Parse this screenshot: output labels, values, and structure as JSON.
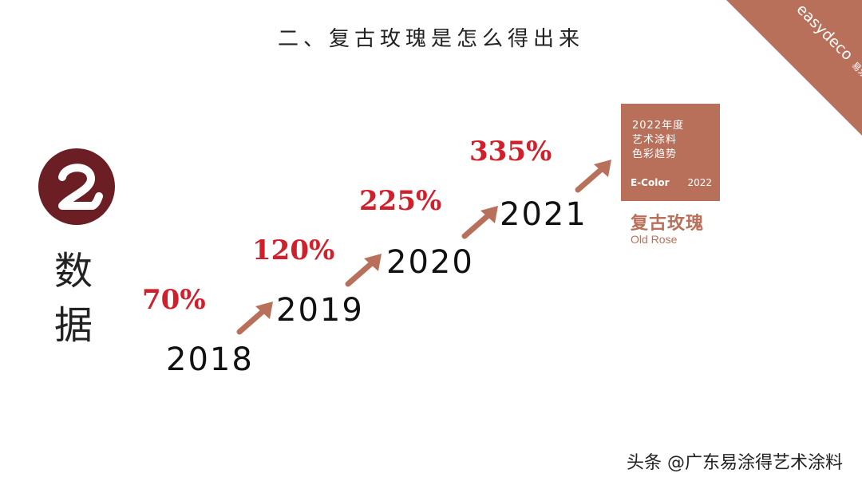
{
  "title": "二、复古玫瑰是怎么得出来",
  "brand": {
    "name": "easydeco",
    "cn": "易涂得"
  },
  "badge_number": "2",
  "side_label": [
    "数",
    "据"
  ],
  "years": [
    "2018",
    "2019",
    "2020",
    "2021"
  ],
  "percentages": [
    "70%",
    "120%",
    "225%",
    "335%"
  ],
  "card": {
    "lines": [
      "2022年度",
      "艺术涂料",
      "色彩趋势"
    ],
    "foot_left": "E-Color",
    "foot_right": "2022"
  },
  "rose": {
    "cn": "复古玫瑰",
    "en": "Old Rose"
  },
  "credit": "头条 @广东易涂得艺术涂料",
  "colors": {
    "accent": "#b9705b",
    "red": "#d0202c",
    "badge": "#6b1f24"
  }
}
